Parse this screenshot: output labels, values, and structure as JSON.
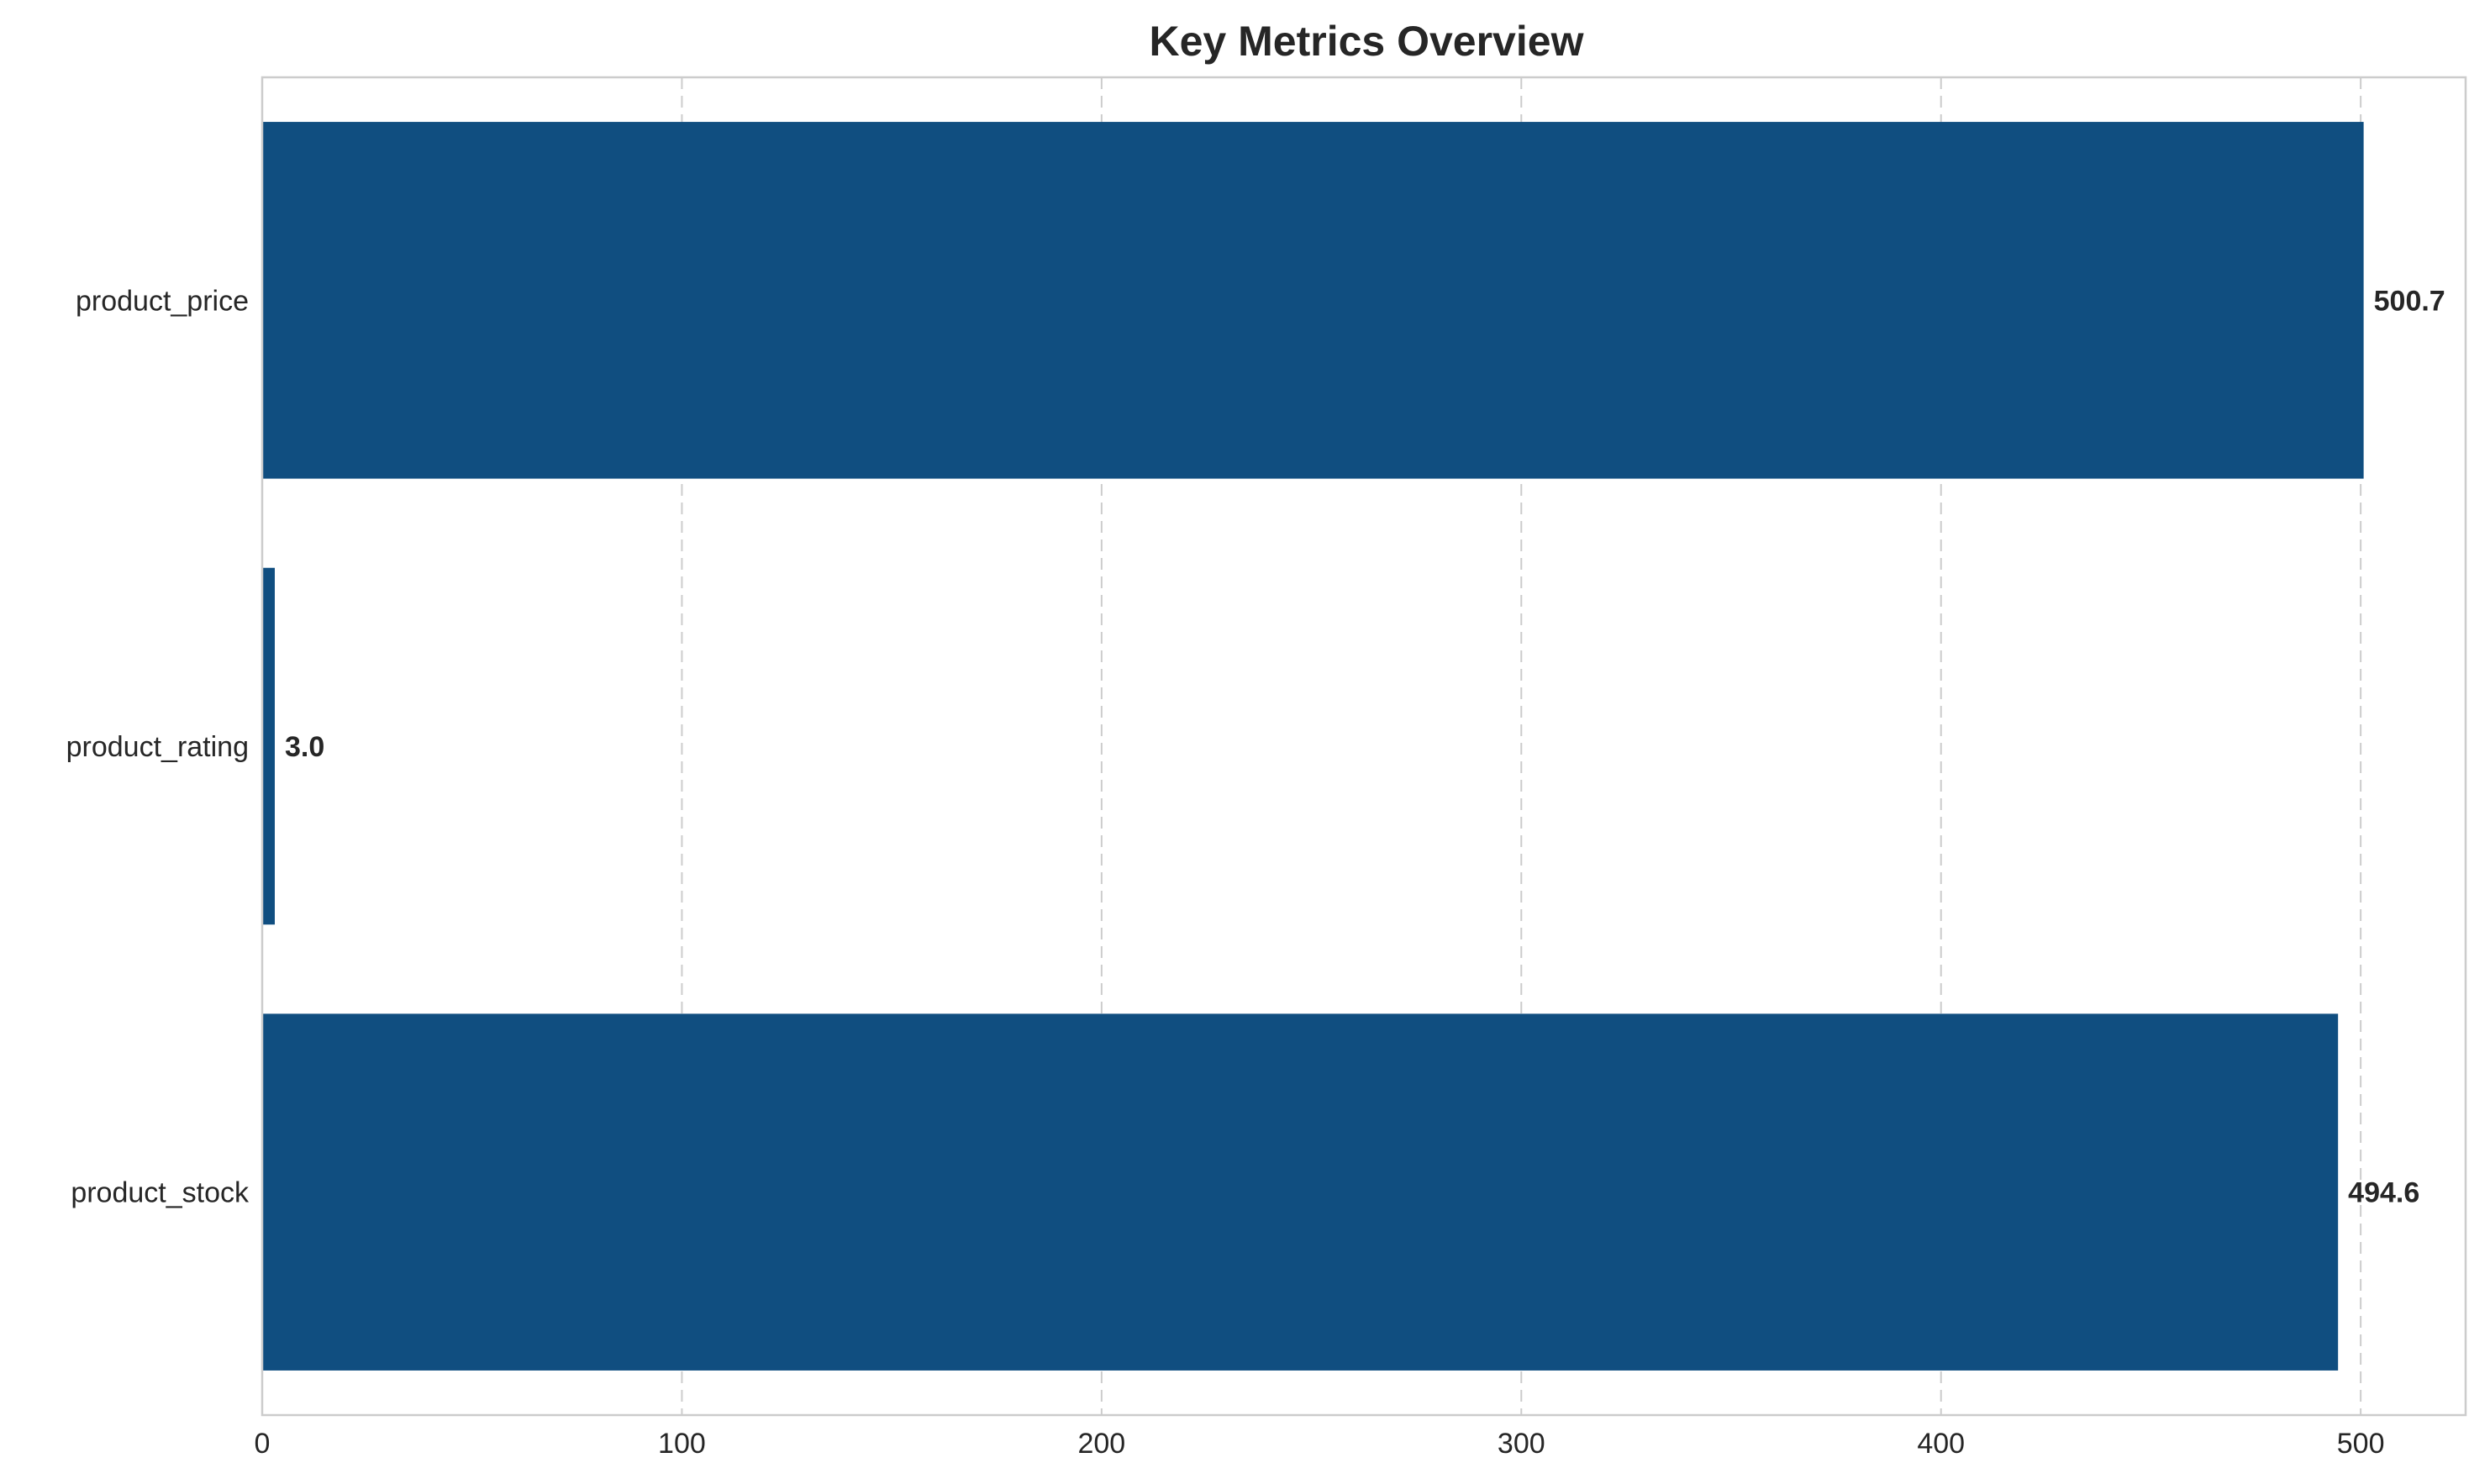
{
  "chart_data": {
    "type": "bar",
    "orientation": "horizontal",
    "title": "Key Metrics Overview",
    "xlabel": "",
    "ylabel": "",
    "categories": [
      "product_stock",
      "product_rating",
      "product_price"
    ],
    "values": [
      494.6,
      3.0,
      500.7
    ],
    "value_labels": [
      "494.6",
      "3.0",
      "500.7"
    ],
    "xlim": [
      0,
      525
    ],
    "x_ticks": [
      0,
      100,
      200,
      300,
      400,
      500
    ],
    "x_tick_labels": [
      "0",
      "100",
      "200",
      "300",
      "400",
      "500"
    ],
    "grid": "x-only, dashed",
    "legend": "none",
    "bar_color": "#104e80",
    "grid_color": "#cccccc",
    "text_color": "#262626"
  }
}
